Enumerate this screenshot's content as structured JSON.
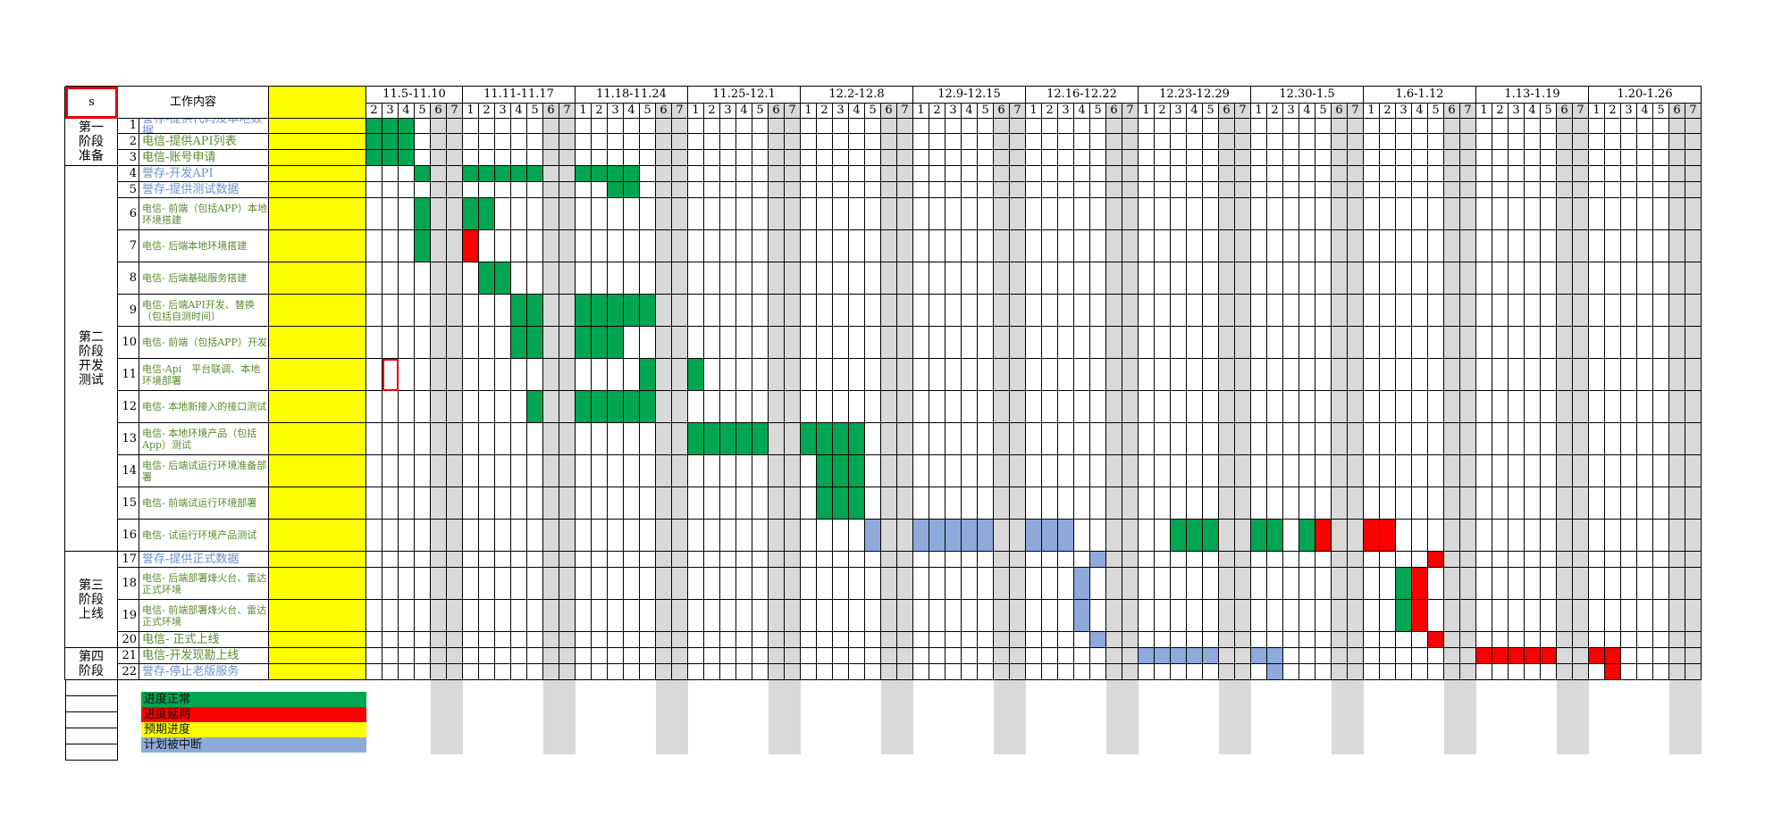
{
  "sheet": {
    "name_cell": "s",
    "header_work_content": "工作内容",
    "weeks": [
      "11.5-11.10",
      "11.11-11.17",
      "11.18-11.24",
      "11.25-12.1",
      "12.2-12.8",
      "12.9-12.15",
      "12.16-12.22",
      "12.23-12.29",
      "12.30-1.5",
      "1.6-1.12",
      "1.13-1.19",
      "1.20-1.26"
    ],
    "first_week_days": [
      "2",
      "3",
      "4",
      "5",
      "6",
      "7"
    ],
    "week_days": [
      "1",
      "2",
      "3",
      "4",
      "5",
      "6",
      "7"
    ],
    "phases": [
      {
        "label": "第一阶段准备",
        "first_row": 1,
        "last_row": 3
      },
      {
        "label": "第二阶段开发测试",
        "first_row": 4,
        "last_row": 16
      },
      {
        "label": "第三阶段上线",
        "first_row": 17,
        "last_row": 20
      },
      {
        "label": "第四阶段",
        "first_row": 21,
        "last_row": 22
      }
    ],
    "tasks": [
      {
        "num": "1",
        "text": "誉存-提供代码及本地数据",
        "style": "lnk"
      },
      {
        "num": "2",
        "text": "电信-提供API列表",
        "style": "grn"
      },
      {
        "num": "3",
        "text": "电信-账号申请",
        "style": "grn"
      },
      {
        "num": "4",
        "text": "誉存-开发API",
        "style": "lnk"
      },
      {
        "num": "5",
        "text": "誉存-提供测试数据",
        "style": "lnk"
      },
      {
        "num": "6",
        "text": "电信- 前端（包括APP）本地环境搭建",
        "style": "grn"
      },
      {
        "num": "7",
        "text": "电信- 后端本地环境搭建",
        "style": "grn"
      },
      {
        "num": "8",
        "text": "电信- 后端基础服务搭建",
        "style": "grn"
      },
      {
        "num": "9",
        "text": "电信- 后端API开发、替换（包括自测时间）",
        "style": "grn"
      },
      {
        "num": "10",
        "text": "电信- 前端（包括APP）开发",
        "style": "grn"
      },
      {
        "num": "11",
        "text": "电信-Api　平台联调、本地环境部署",
        "style": "grn"
      },
      {
        "num": "12",
        "text": "电信- 本地新接入的接口测试",
        "style": "grn"
      },
      {
        "num": "13",
        "text": "电信- 本地环境产品（包括App）测试",
        "style": "grn"
      },
      {
        "num": "14",
        "text": "电信- 后端试运行环境准备部署",
        "style": "grn"
      },
      {
        "num": "15",
        "text": "电信- 前端试运行环境部署",
        "style": "grn"
      },
      {
        "num": "16",
        "text": "电信- 试运行环境产品测试",
        "style": "grn"
      },
      {
        "num": "17",
        "text": "誉存-提供正式数据",
        "style": "lnk"
      },
      {
        "num": "18",
        "text": "电信- 后端部署烽火台、雷达正式环境",
        "style": "grn"
      },
      {
        "num": "19",
        "text": "电信- 前端部署烽火台、雷达正式环境",
        "style": "grn"
      },
      {
        "num": "20",
        "text": "电信- 正式上线",
        "style": "grn"
      },
      {
        "num": "21",
        "text": "电信-开发现勘上线",
        "style": "grn"
      },
      {
        "num": "22",
        "text": "誉存-停止老版服务",
        "style": "lnk"
      }
    ],
    "colors": {
      "normal": "#00a651",
      "delayed": "#ff0000",
      "expected": "#ffff00",
      "interrupted": "#8eaadb",
      "weekend": "#d9d9d9",
      "selection": "#e60000"
    },
    "bars": [
      {
        "row": 1,
        "status": "normal",
        "start_day": 0,
        "end_day": 2
      },
      {
        "row": 2,
        "status": "normal",
        "start_day": 0,
        "end_day": 2
      },
      {
        "row": 3,
        "status": "normal",
        "start_day": 0,
        "end_day": 2
      },
      {
        "row": 4,
        "status": "normal",
        "start_day": 3,
        "end_day": 3
      },
      {
        "row": 4,
        "status": "normal",
        "start_day": 6,
        "end_day": 10
      },
      {
        "row": 4,
        "status": "normal",
        "start_day": 13,
        "end_day": 16
      },
      {
        "row": 5,
        "status": "normal",
        "start_day": 15,
        "end_day": 16
      },
      {
        "row": 6,
        "status": "normal",
        "start_day": 3,
        "end_day": 3
      },
      {
        "row": 6,
        "status": "normal",
        "start_day": 6,
        "end_day": 7
      },
      {
        "row": 7,
        "status": "normal",
        "start_day": 3,
        "end_day": 3
      },
      {
        "row": 7,
        "status": "delayed",
        "start_day": 6,
        "end_day": 6
      },
      {
        "row": 8,
        "status": "normal",
        "start_day": 7,
        "end_day": 8
      },
      {
        "row": 9,
        "status": "normal",
        "start_day": 9,
        "end_day": 10
      },
      {
        "row": 9,
        "status": "normal",
        "start_day": 13,
        "end_day": 17
      },
      {
        "row": 10,
        "status": "normal",
        "start_day": 9,
        "end_day": 10
      },
      {
        "row": 10,
        "status": "normal",
        "start_day": 13,
        "end_day": 15
      },
      {
        "row": 11,
        "status": "normal",
        "start_day": 17,
        "end_day": 17
      },
      {
        "row": 11,
        "status": "normal",
        "start_day": 20,
        "end_day": 20
      },
      {
        "row": 12,
        "status": "normal",
        "start_day": 10,
        "end_day": 10
      },
      {
        "row": 12,
        "status": "normal",
        "start_day": 13,
        "end_day": 17
      },
      {
        "row": 13,
        "status": "normal",
        "start_day": 20,
        "end_day": 24
      },
      {
        "row": 13,
        "status": "normal",
        "start_day": 27,
        "end_day": 30
      },
      {
        "row": 14,
        "status": "normal",
        "start_day": 28,
        "end_day": 30
      },
      {
        "row": 15,
        "status": "normal",
        "start_day": 28,
        "end_day": 30
      },
      {
        "row": 16,
        "status": "interrupted",
        "start_day": 31,
        "end_day": 31
      },
      {
        "row": 16,
        "status": "interrupted",
        "start_day": 34,
        "end_day": 38
      },
      {
        "row": 16,
        "status": "interrupted",
        "start_day": 41,
        "end_day": 43
      },
      {
        "row": 16,
        "status": "normal",
        "start_day": 50,
        "end_day": 52
      },
      {
        "row": 16,
        "status": "normal",
        "start_day": 55,
        "end_day": 56
      },
      {
        "row": 16,
        "status": "normal",
        "start_day": 58,
        "end_day": 58
      },
      {
        "row": 16,
        "status": "delayed",
        "start_day": 59,
        "end_day": 59
      },
      {
        "row": 16,
        "status": "delayed",
        "start_day": 62,
        "end_day": 63
      },
      {
        "row": 17,
        "status": "interrupted",
        "start_day": 45,
        "end_day": 45
      },
      {
        "row": 17,
        "status": "delayed",
        "start_day": 66,
        "end_day": 66
      },
      {
        "row": 18,
        "status": "interrupted",
        "start_day": 44,
        "end_day": 44
      },
      {
        "row": 18,
        "status": "normal",
        "start_day": 64,
        "end_day": 64
      },
      {
        "row": 18,
        "status": "delayed",
        "start_day": 65,
        "end_day": 65
      },
      {
        "row": 19,
        "status": "interrupted",
        "start_day": 44,
        "end_day": 44
      },
      {
        "row": 19,
        "status": "normal",
        "start_day": 64,
        "end_day": 64
      },
      {
        "row": 19,
        "status": "delayed",
        "start_day": 65,
        "end_day": 65
      },
      {
        "row": 20,
        "status": "interrupted",
        "start_day": 45,
        "end_day": 45
      },
      {
        "row": 20,
        "status": "delayed",
        "start_day": 66,
        "end_day": 66
      },
      {
        "row": 21,
        "status": "interrupted",
        "start_day": 48,
        "end_day": 52
      },
      {
        "row": 21,
        "status": "interrupted",
        "start_day": 55,
        "end_day": 56
      },
      {
        "row": 21,
        "status": "delayed",
        "start_day": 69,
        "end_day": 73
      },
      {
        "row": 21,
        "status": "delayed",
        "start_day": 76,
        "end_day": 77
      },
      {
        "row": 22,
        "status": "interrupted",
        "start_day": 56,
        "end_day": 56
      },
      {
        "row": 22,
        "status": "delayed",
        "start_day": 77,
        "end_day": 77
      }
    ],
    "legend": [
      {
        "label": "进度正常",
        "color": "#00a651"
      },
      {
        "label": "进度延期",
        "color": "#ff0000"
      },
      {
        "label": "预期进度",
        "color": "#ffff00"
      },
      {
        "label": "计划被中断",
        "color": "#8eaadb"
      }
    ]
  }
}
